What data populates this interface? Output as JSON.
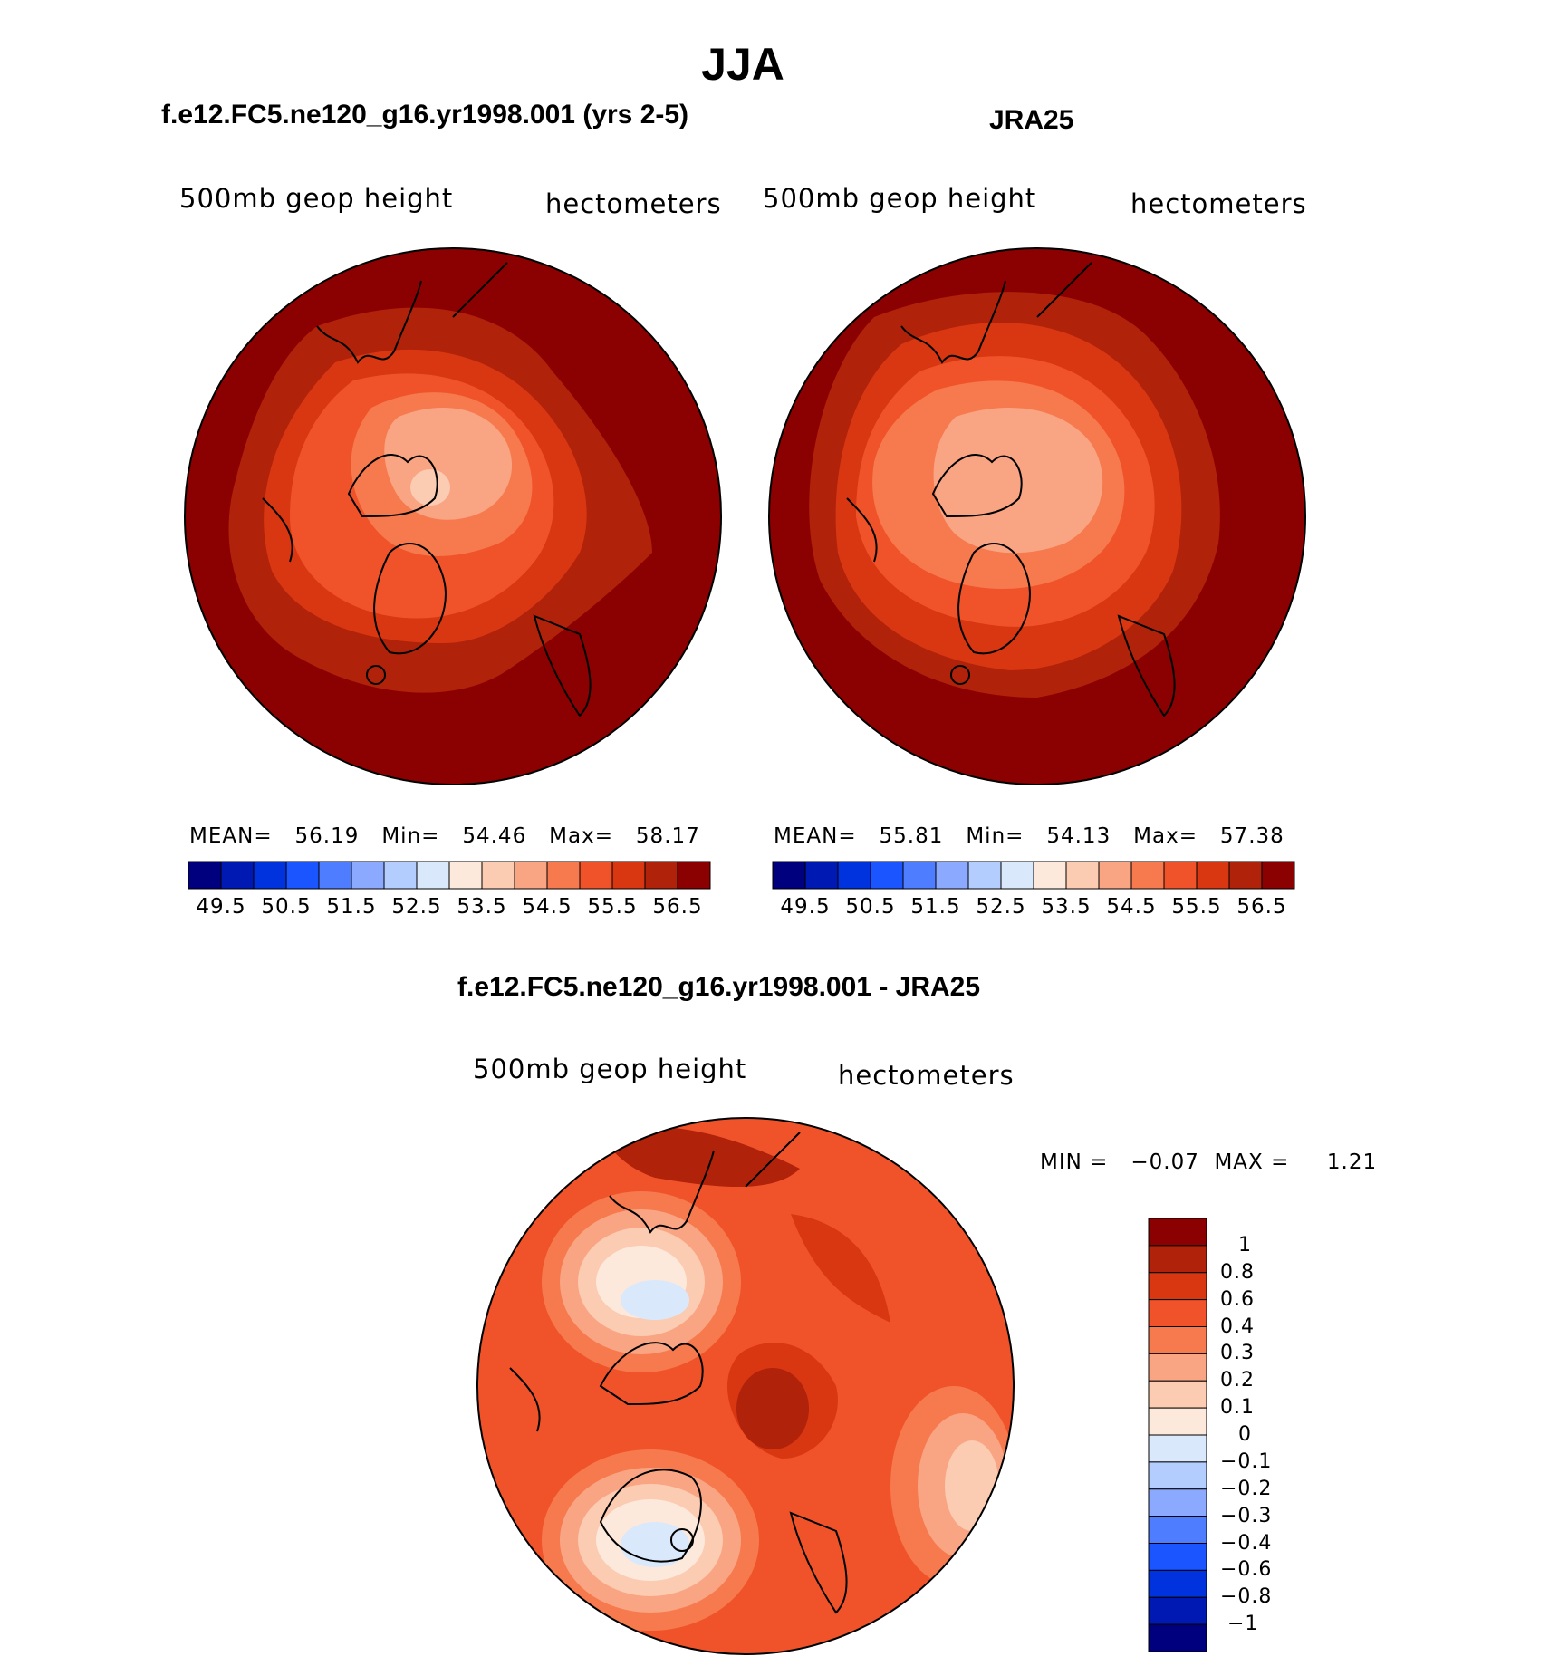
{
  "title": "JJA",
  "panels": [
    {
      "id": "model",
      "header": "f.e12.FC5.ne120_g16.yr1998.001 (yrs 2-5)",
      "left_label": "500mb geop height",
      "right_label": "hectometers",
      "stats": {
        "mean_label": "MEAN=",
        "mean": "56.19",
        "min_label": "Min=",
        "min": "54.46",
        "max_label": "Max=",
        "max": "58.17"
      }
    },
    {
      "id": "obs",
      "header": "JRA25",
      "left_label": "500mb geop height",
      "right_label": "hectometers",
      "stats": {
        "mean_label": "MEAN=",
        "mean": "55.81",
        "min_label": "Min=",
        "min": "54.13",
        "max_label": "Max=",
        "max": "57.38"
      }
    }
  ],
  "difference": {
    "header": "f.e12.FC5.ne120_g16.yr1998.001 - JRA25",
    "left_label": "500mb geop height",
    "right_label": "hectometers",
    "minmax": "MIN =   −0.07  MAX =     1.21"
  },
  "colorbar_abs": {
    "colors": [
      "#00007f",
      "#0019b2",
      "#0033dd",
      "#1a55ff",
      "#4f7dff",
      "#8aa9ff",
      "#b4cdff",
      "#dae8fb",
      "#fde9dc",
      "#fbcbb2",
      "#f9a584",
      "#f67a4e",
      "#f0532a",
      "#d93612",
      "#b0220a",
      "#8b0000"
    ],
    "tick_labels": [
      "49.5",
      "50.5",
      "51.5",
      "52.5",
      "53.5",
      "54.5",
      "55.5",
      "56.5"
    ]
  },
  "colorbar_diff": {
    "colors_top_to_bottom": [
      "#8b0000",
      "#b0220a",
      "#d93612",
      "#f0532a",
      "#f67a4e",
      "#f9a584",
      "#fbcbb2",
      "#fde9dc",
      "#dae8fb",
      "#b4cdff",
      "#8aa9ff",
      "#4f7dff",
      "#1a55ff",
      "#0033dd",
      "#0019b2",
      "#00007f"
    ],
    "tick_labels": [
      "1",
      "0.8",
      "0.6",
      "0.4",
      "0.3",
      "0.2",
      "0.1",
      "0",
      "−0.1",
      "−0.2",
      "−0.3",
      "−0.4",
      "−0.6",
      "−0.8",
      "−1"
    ]
  }
}
